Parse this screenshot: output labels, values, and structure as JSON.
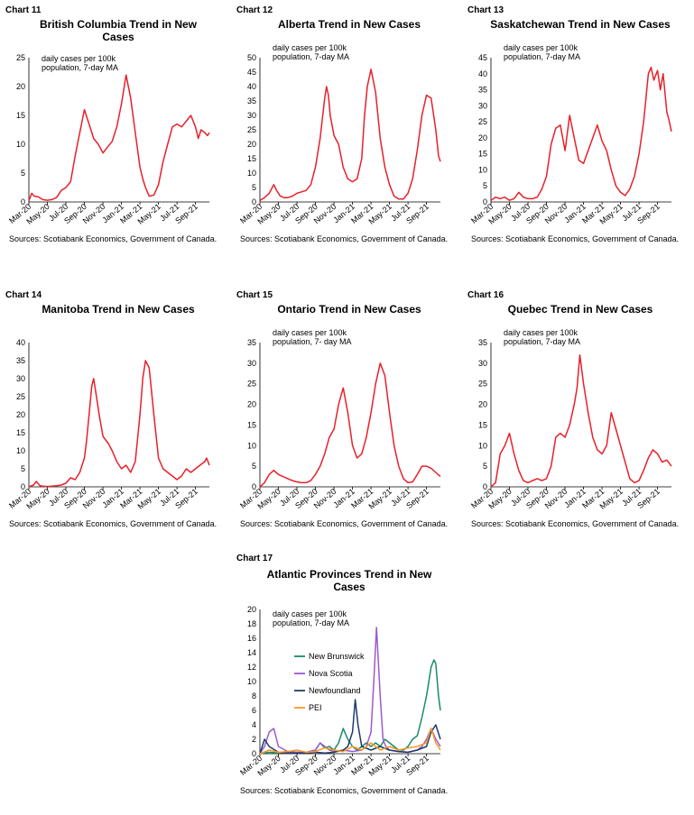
{
  "sources_text": "Sources: Scotiabank Economics, Government of Canada.",
  "chart_data": [
    {
      "id": "c11",
      "number": "Chart 11",
      "title": "British Columbia Trend in New Cases",
      "type": "line",
      "note": "daily cases per 100k population, 7-day MA",
      "ylim": [
        0,
        25
      ],
      "yticks": [
        0,
        5,
        10,
        15,
        20,
        25
      ],
      "xticks": [
        "Mar-20",
        "May-20",
        "Jul-20",
        "Sep-20",
        "Nov-20",
        "Jan-21",
        "Mar-21",
        "May-21",
        "Jul-21",
        "Sep-21"
      ],
      "x_range": [
        0,
        19.5
      ],
      "series": [
        {
          "color": "#e8202a",
          "x": [
            0,
            0.3,
            0.6,
            1,
            1.5,
            2,
            2.5,
            3,
            3.5,
            4,
            4.5,
            5,
            5.5,
            6,
            6.5,
            7,
            7.5,
            8,
            8.5,
            9,
            9.5,
            10,
            10.5,
            11,
            11.5,
            12,
            12.3,
            12.6,
            13,
            13.5,
            14,
            14.5,
            15,
            15.5,
            16,
            16.5,
            17,
            17.5,
            18,
            18.3,
            18.6,
            19,
            19.3,
            19.5
          ],
          "values": [
            0.2,
            1.5,
            1,
            0.9,
            0.4,
            0.3,
            0.4,
            0.8,
            2,
            2.5,
            3.5,
            8,
            12,
            16,
            13.5,
            11,
            10,
            8.5,
            9.5,
            10.5,
            13,
            17,
            22,
            18,
            12,
            6,
            4,
            2.5,
            1,
            1.2,
            3,
            7,
            10,
            13,
            13.5,
            13,
            14,
            15,
            13,
            11,
            12.5,
            12,
            11.5,
            12
          ]
        }
      ]
    },
    {
      "id": "c12",
      "number": "Chart 12",
      "title": "Alberta Trend in New Cases",
      "type": "line",
      "note": "daily cases per 100k population, 7-day MA",
      "ylim": [
        0,
        50
      ],
      "yticks": [
        0,
        5,
        10,
        15,
        20,
        25,
        30,
        35,
        40,
        45,
        50
      ],
      "xticks": [
        "Mar-20",
        "May-20",
        "Jul-20",
        "Sep-20",
        "Nov-20",
        "Jan-21",
        "Mar-21",
        "May-21",
        "Jul-21",
        "Sep-21"
      ],
      "x_range": [
        0,
        19.5
      ],
      "series": [
        {
          "color": "#e8202a",
          "x": [
            0,
            0.5,
            1,
            1.5,
            1.8,
            2.2,
            2.6,
            3,
            3.5,
            4,
            4.5,
            5,
            5.5,
            6,
            6.5,
            7,
            7.2,
            7.4,
            7.6,
            8,
            8.5,
            9,
            9.5,
            10,
            10.5,
            11,
            11.3,
            11.6,
            12,
            12.5,
            13,
            13.5,
            14,
            14.5,
            15,
            15.5,
            16,
            16.5,
            17,
            17.5,
            18,
            18.5,
            19,
            19.3,
            19.5
          ],
          "values": [
            0.5,
            1.5,
            3,
            6,
            4,
            2,
            1.5,
            1.5,
            2,
            3,
            3.5,
            4,
            6,
            12,
            22,
            36,
            40,
            37,
            30,
            23,
            20,
            12,
            8,
            7,
            8,
            15,
            30,
            40,
            46,
            38,
            22,
            12,
            6,
            2,
            1,
            1,
            3,
            8,
            18,
            30,
            37,
            36,
            25,
            16,
            14
          ]
        }
      ]
    },
    {
      "id": "c13",
      "number": "Chart 13",
      "title": "Saskatchewan Trend in New Cases",
      "type": "line",
      "note": "daily cases per 100k population, 7-day MA",
      "ylim": [
        0,
        45
      ],
      "yticks": [
        0,
        5,
        10,
        15,
        20,
        25,
        30,
        35,
        40,
        45
      ],
      "xticks": [
        "Mar-20",
        "May-20",
        "Jul-20",
        "Sep-20",
        "Nov-20",
        "Jan-21",
        "Mar-21",
        "May-21",
        "Jul-21",
        "Sep-21"
      ],
      "x_range": [
        0,
        19.5
      ],
      "series": [
        {
          "color": "#e8202a",
          "x": [
            0,
            0.5,
            1,
            1.5,
            2,
            2.5,
            3,
            3.5,
            4,
            4.5,
            5,
            5.5,
            6,
            6.5,
            7,
            7.5,
            8,
            8.5,
            9,
            9.5,
            10,
            10.5,
            11,
            11.5,
            12,
            12.5,
            13,
            13.5,
            14,
            14.5,
            15,
            15.5,
            16,
            16.5,
            17,
            17.3,
            17.6,
            18,
            18.3,
            18.6,
            19,
            19.2,
            19.5
          ],
          "values": [
            0.5,
            1.5,
            1,
            1.5,
            0.5,
            1,
            3,
            1.5,
            1,
            1,
            1.5,
            4,
            8,
            18,
            23,
            24,
            16,
            27,
            20,
            13,
            12,
            16,
            20,
            24,
            19,
            16,
            10,
            5,
            3,
            2,
            4,
            8,
            15,
            25,
            40,
            42,
            38,
            41,
            35,
            40,
            28,
            26,
            22
          ]
        }
      ]
    },
    {
      "id": "c14",
      "number": "Chart 14",
      "title": "Manitoba Trend in New Cases",
      "type": "line",
      "note": "",
      "ylim": [
        0,
        40
      ],
      "yticks": [
        0,
        5,
        10,
        15,
        20,
        25,
        30,
        35,
        40
      ],
      "xticks": [
        "Mar-20",
        "May-20",
        "Jul-20",
        "Sep-20",
        "Nov-20",
        "Jan-21",
        "Mar-21",
        "May-21",
        "Jul-21",
        "Sep-21"
      ],
      "x_range": [
        0,
        19.5
      ],
      "series": [
        {
          "color": "#e8202a",
          "x": [
            0,
            0.5,
            0.8,
            1.2,
            1.5,
            2,
            2.5,
            3,
            3.5,
            4,
            4.5,
            5,
            5.5,
            6,
            6.2,
            6.5,
            6.8,
            7,
            7.3,
            7.6,
            8,
            8.3,
            8.6,
            9,
            9.5,
            10,
            10.5,
            11,
            11.5,
            12,
            12.3,
            12.6,
            13,
            13.5,
            14,
            14.5,
            15,
            15.5,
            16,
            16.5,
            17,
            17.5,
            18,
            18.5,
            19,
            19.2,
            19.5
          ],
          "values": [
            0,
            0.5,
            1.5,
            0.3,
            0.2,
            0.1,
            0.2,
            0.3,
            0.5,
            1,
            2.5,
            2,
            4,
            8,
            12,
            20,
            28,
            30,
            25,
            20,
            14,
            13,
            12,
            10,
            7,
            5,
            6,
            4,
            7,
            20,
            30,
            35,
            33,
            20,
            8,
            5,
            4,
            3,
            2,
            3,
            5,
            4,
            5,
            6,
            7,
            8,
            6
          ]
        }
      ]
    },
    {
      "id": "c15",
      "number": "Chart 15",
      "title": "Ontario Trend in New Cases",
      "type": "line",
      "note": "daily cases per 100k population, 7- day MA",
      "ylim": [
        0,
        35
      ],
      "yticks": [
        0,
        5,
        10,
        15,
        20,
        25,
        30,
        35
      ],
      "xticks": [
        "Mar-20",
        "May-20",
        "Jul-20",
        "Sep-20",
        "Nov-20",
        "Jan-21",
        "Mar-21",
        "May-21",
        "Jul-21",
        "Sep-21"
      ],
      "x_range": [
        0,
        19.5
      ],
      "series": [
        {
          "color": "#e8202a",
          "x": [
            0,
            0.5,
            1,
            1.5,
            2,
            2.5,
            3,
            3.5,
            4,
            4.5,
            5,
            5.5,
            6,
            6.5,
            7,
            7.5,
            8,
            8.5,
            9,
            9.5,
            10,
            10.5,
            11,
            11.5,
            12,
            12.5,
            13,
            13.5,
            14,
            14.5,
            15,
            15.5,
            16,
            16.5,
            17,
            17.5,
            18,
            18.5,
            19,
            19.5
          ],
          "values": [
            0,
            1,
            3,
            4,
            3,
            2.5,
            2,
            1.5,
            1.2,
            1,
            1,
            1.5,
            3,
            5,
            8,
            12,
            14,
            20,
            24,
            18,
            10,
            7,
            8,
            12,
            18,
            25,
            30,
            27,
            18,
            10,
            5,
            2,
            1,
            1.2,
            3,
            5,
            5,
            4.5,
            3.5,
            2.5
          ]
        }
      ]
    },
    {
      "id": "c16",
      "number": "Chart 16",
      "title": "Quebec Trend in New Cases",
      "type": "line",
      "note": "daily cases per 100k population, 7-day MA",
      "ylim": [
        0,
        35
      ],
      "yticks": [
        0,
        5,
        10,
        15,
        20,
        25,
        30,
        35
      ],
      "xticks": [
        "Mar-20",
        "May-20",
        "Jul-20",
        "Sep-20",
        "Nov-20",
        "Jan-21",
        "Mar-21",
        "May-21",
        "Jul-21",
        "Sep-21"
      ],
      "x_range": [
        0,
        19.5
      ],
      "series": [
        {
          "color": "#e8202a",
          "x": [
            0,
            0.5,
            1,
            1.5,
            2,
            2.5,
            3,
            3.5,
            4,
            4.5,
            5,
            5.5,
            6,
            6.5,
            7,
            7.5,
            8,
            8.5,
            9,
            9.3,
            9.6,
            10,
            10.5,
            11,
            11.5,
            12,
            12.5,
            13,
            13.5,
            14,
            14.5,
            15,
            15.5,
            16,
            16.5,
            17,
            17.5,
            18,
            18.5,
            19,
            19.5
          ],
          "values": [
            0,
            1,
            8,
            10,
            13,
            8,
            4,
            1.5,
            1,
            1.5,
            2,
            1.5,
            2,
            5,
            12,
            13,
            12,
            15,
            20,
            24,
            32,
            25,
            18,
            12,
            9,
            8,
            10,
            18,
            14,
            10,
            6,
            2,
            1,
            1.5,
            4,
            7,
            9,
            8,
            6,
            6.5,
            5
          ]
        }
      ]
    },
    {
      "id": "c17",
      "number": "Chart 17",
      "title": "Atlantic Provinces Trend in New Cases",
      "type": "line",
      "note": "daily cases per 100k population, 7-day MA",
      "ylim": [
        0,
        20
      ],
      "yticks": [
        0,
        2,
        4,
        6,
        8,
        10,
        12,
        14,
        16,
        18,
        20
      ],
      "xticks": [
        "Mar-20",
        "May-20",
        "Jul-20",
        "Sep-20",
        "Nov-20",
        "Jan-21",
        "Mar-21",
        "May-21",
        "Jul-21",
        "Sep-21"
      ],
      "x_range": [
        0,
        19.5
      ],
      "legend": [
        "New Brunswick",
        "Nova Scotia",
        "Newfoundland",
        "PEI"
      ],
      "series": [
        {
          "name": "New Brunswick",
          "color": "#1a8a6a",
          "x": [
            0,
            1,
            2,
            3,
            4,
            5,
            6,
            6.5,
            7,
            7.5,
            8,
            8.5,
            9,
            9.5,
            10,
            10.5,
            11,
            11.5,
            12,
            12.5,
            13,
            13.5,
            14,
            14.5,
            15,
            15.5,
            16,
            16.5,
            17,
            17.5,
            18,
            18.5,
            18.8,
            19,
            19.3,
            19.5
          ],
          "values": [
            0,
            0.2,
            0.1,
            0.3,
            0.2,
            0.1,
            0.5,
            1.5,
            0.8,
            1,
            0.5,
            1.5,
            3.5,
            2,
            1,
            0.5,
            1,
            1.5,
            1,
            1.5,
            1,
            2,
            1.5,
            1,
            0.5,
            0.5,
            1,
            2,
            2.5,
            5,
            8,
            12,
            13,
            12.5,
            8,
            6
          ]
        },
        {
          "name": "Nova Scotia",
          "color": "#9b59d0",
          "x": [
            0,
            0.5,
            1,
            1.5,
            2,
            3,
            4,
            5,
            6,
            6.5,
            7,
            7.5,
            8,
            9,
            10,
            11,
            11.5,
            12,
            12.3,
            12.6,
            13,
            13.3,
            13.6,
            14,
            15,
            16,
            17,
            17.5,
            18,
            18.5,
            19,
            19.5
          ],
          "values": [
            0,
            1,
            3,
            3.5,
            1,
            0.3,
            0.2,
            0.2,
            0.5,
            1.5,
            1,
            0.5,
            0.3,
            0.5,
            0.3,
            0.5,
            1,
            3,
            10,
            17.5,
            8,
            2,
            1,
            0.5,
            0.3,
            0.2,
            0.5,
            1,
            2,
            3.5,
            2,
            1
          ]
        },
        {
          "name": "Newfoundland",
          "color": "#1f3a6b",
          "x": [
            0,
            0.5,
            1,
            2,
            3,
            4,
            5,
            6,
            7,
            8,
            9,
            9.5,
            10,
            10.3,
            10.6,
            11,
            12,
            13,
            14,
            15,
            16,
            17,
            18,
            18.5,
            19,
            19.5
          ],
          "values": [
            0,
            2,
            1,
            0.2,
            0.1,
            0.1,
            0.1,
            0.2,
            0.1,
            0.2,
            0.5,
            1,
            3,
            7.5,
            4,
            1,
            0.5,
            1,
            0.5,
            0.3,
            0.2,
            0.5,
            1,
            3,
            4,
            2
          ]
        },
        {
          "name": "PEI",
          "color": "#f59a23",
          "x": [
            0,
            1,
            2,
            3,
            4,
            5,
            6,
            7,
            8,
            9,
            10,
            11,
            12,
            13,
            14,
            15,
            16,
            17,
            18,
            18.5,
            19,
            19.5
          ],
          "values": [
            0,
            0.5,
            0.2,
            0.3,
            0.5,
            0.2,
            0.3,
            0.8,
            0.5,
            0.3,
            1,
            0.5,
            1.5,
            0.5,
            1,
            0.5,
            0.8,
            1,
            1.5,
            3.5,
            1.5,
            0.5
          ]
        }
      ]
    }
  ]
}
